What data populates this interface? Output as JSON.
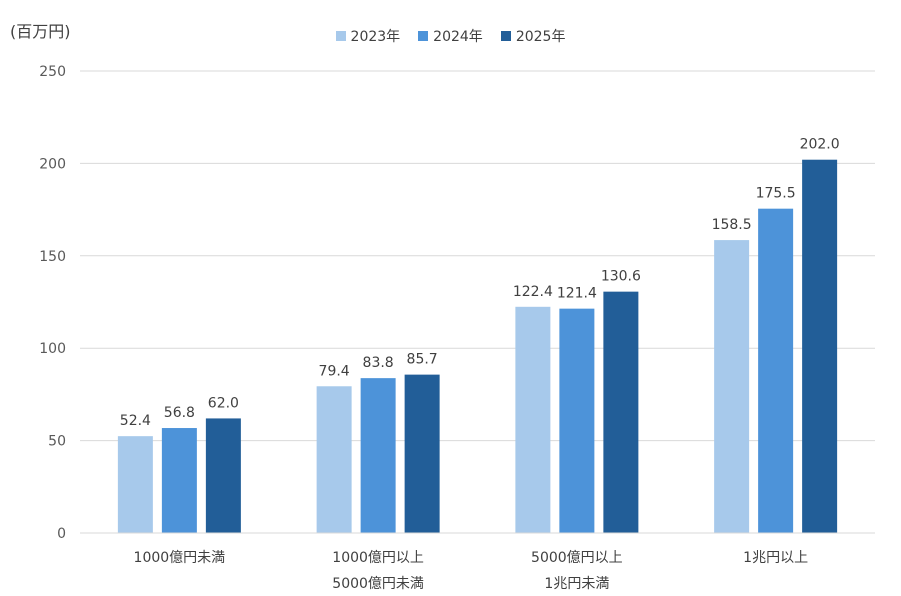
{
  "chart_data": {
    "type": "bar",
    "unit_label": "(百万円)",
    "categories": [
      [
        "1000億円未満"
      ],
      [
        "1000億円以上",
        "5000億円未満"
      ],
      [
        "5000億円以上",
        "1兆円未満"
      ],
      [
        "1兆円以上"
      ]
    ],
    "series": [
      {
        "name": "2023年",
        "color": "#a7c9eb",
        "values": [
          52.4,
          79.4,
          122.4,
          158.5
        ],
        "labels": [
          "52.4",
          "79.4",
          "122.4",
          "158.5"
        ]
      },
      {
        "name": "2024年",
        "color": "#4d93d9",
        "values": [
          56.8,
          83.8,
          121.4,
          175.5
        ],
        "labels": [
          "56.8",
          "83.8",
          "121.4",
          "175.5"
        ]
      },
      {
        "name": "2025年",
        "color": "#225e98",
        "values": [
          62.0,
          85.7,
          130.6,
          202.0
        ],
        "labels": [
          "62.0",
          "85.7",
          "130.6",
          "202.0"
        ]
      }
    ],
    "yticks": [
      "0",
      "50",
      "100",
      "150",
      "200",
      "250"
    ],
    "ylim": [
      0,
      250
    ],
    "grid": true,
    "legend_position": "top-center"
  }
}
